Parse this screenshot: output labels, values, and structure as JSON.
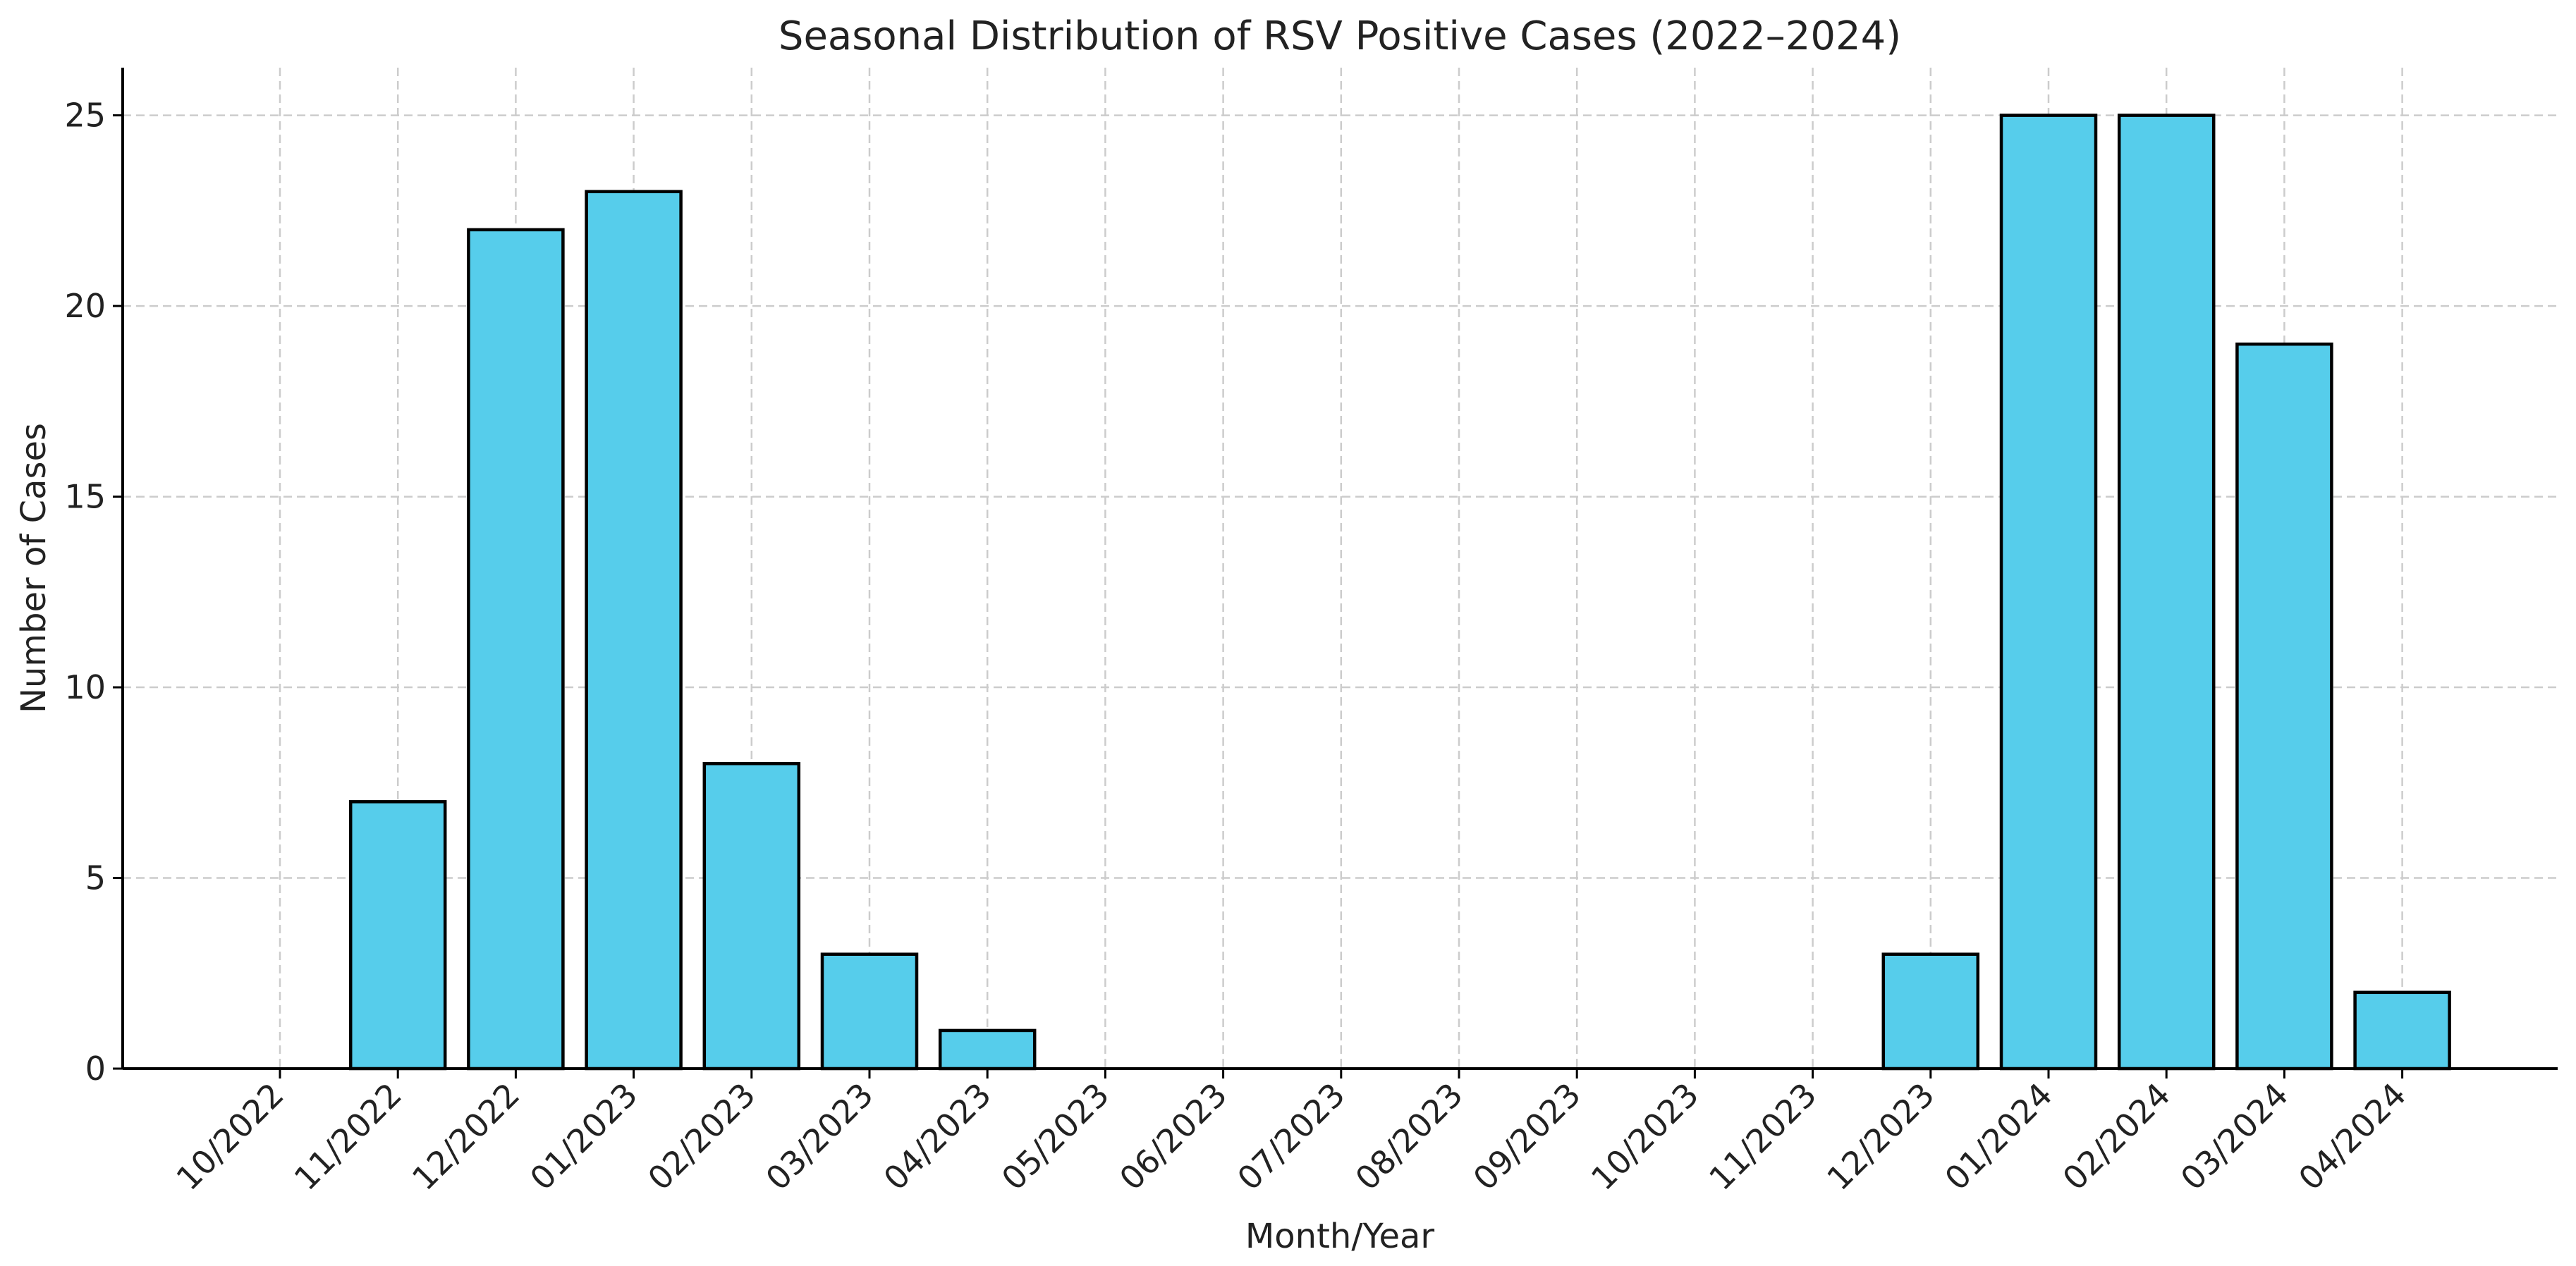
{
  "chart_data": {
    "type": "bar",
    "title": "Seasonal Distribution of RSV Positive Cases (2022–2024)",
    "xlabel": "Month/Year",
    "ylabel": "Number of Cases",
    "categories": [
      "10/2022",
      "11/2022",
      "12/2022",
      "01/2023",
      "02/2023",
      "03/2023",
      "04/2023",
      "05/2023",
      "06/2023",
      "07/2023",
      "08/2023",
      "09/2023",
      "10/2023",
      "11/2023",
      "12/2023",
      "01/2024",
      "02/2024",
      "03/2024",
      "04/2024"
    ],
    "values": [
      0,
      7,
      22,
      23,
      8,
      3,
      1,
      0,
      0,
      0,
      0,
      0,
      0,
      0,
      3,
      25,
      25,
      19,
      2
    ],
    "ylim": [
      0,
      26.25
    ],
    "yticks": [
      0,
      5,
      10,
      15,
      20,
      25
    ],
    "grid": true,
    "bar_color": "#56cdeb",
    "edge_color": "#000000"
  }
}
